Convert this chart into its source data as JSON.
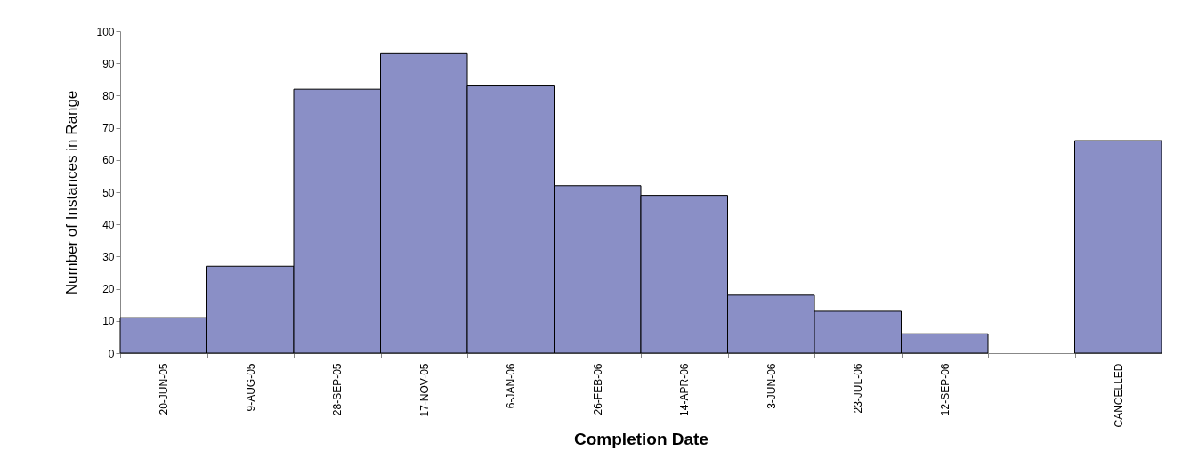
{
  "chart_data": {
    "type": "bar",
    "xlabel": "Completion Date",
    "ylabel": "Number of Instances in Range",
    "categories": [
      "20-JUN-05",
      "9-AUG-05",
      "28-SEP-05",
      "17-NOV-05",
      "6-JAN-06",
      "26-FEB-06",
      "14-APR-06",
      "3-JUN-06",
      "23-JUL-06",
      "12-SEP-06",
      null,
      "CANCELLED"
    ],
    "values": [
      11,
      27,
      82,
      93,
      83,
      52,
      49,
      18,
      13,
      6,
      null,
      66
    ],
    "color": "#8a8fc6",
    "ylim": [
      0,
      100
    ],
    "yticks": [
      0,
      10,
      20,
      30,
      40,
      50,
      60,
      70,
      80,
      90,
      100
    ],
    "grid": false
  }
}
